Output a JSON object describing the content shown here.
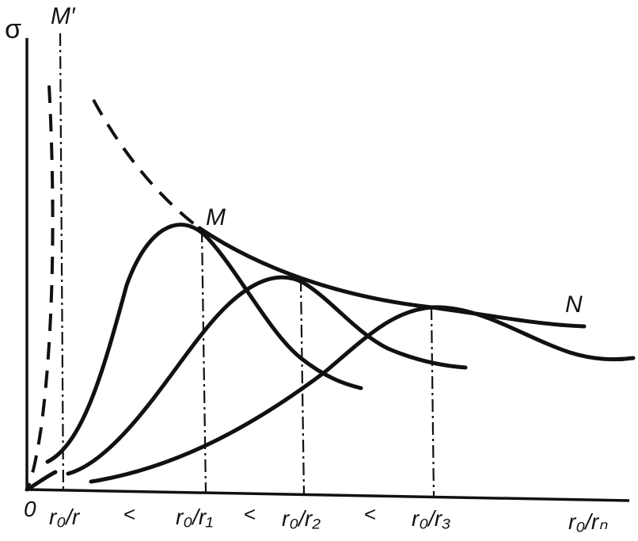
{
  "axes": {
    "y_label": "σ",
    "origin_label": "0",
    "x_label": "r₀/rₙ"
  },
  "markers": {
    "m_prime": "M′",
    "m": "M",
    "n": "N"
  },
  "x_ticks": [
    {
      "num": "r₀",
      "den": "r"
    },
    {
      "num": "r₀",
      "den": "r₁"
    },
    {
      "num": "r₀",
      "den": "r₂"
    },
    {
      "num": "r₀",
      "den": "r₃"
    }
  ],
  "inequality_sign": "<",
  "colors": {
    "ink": "#111111",
    "background": "#ffffff"
  }
}
